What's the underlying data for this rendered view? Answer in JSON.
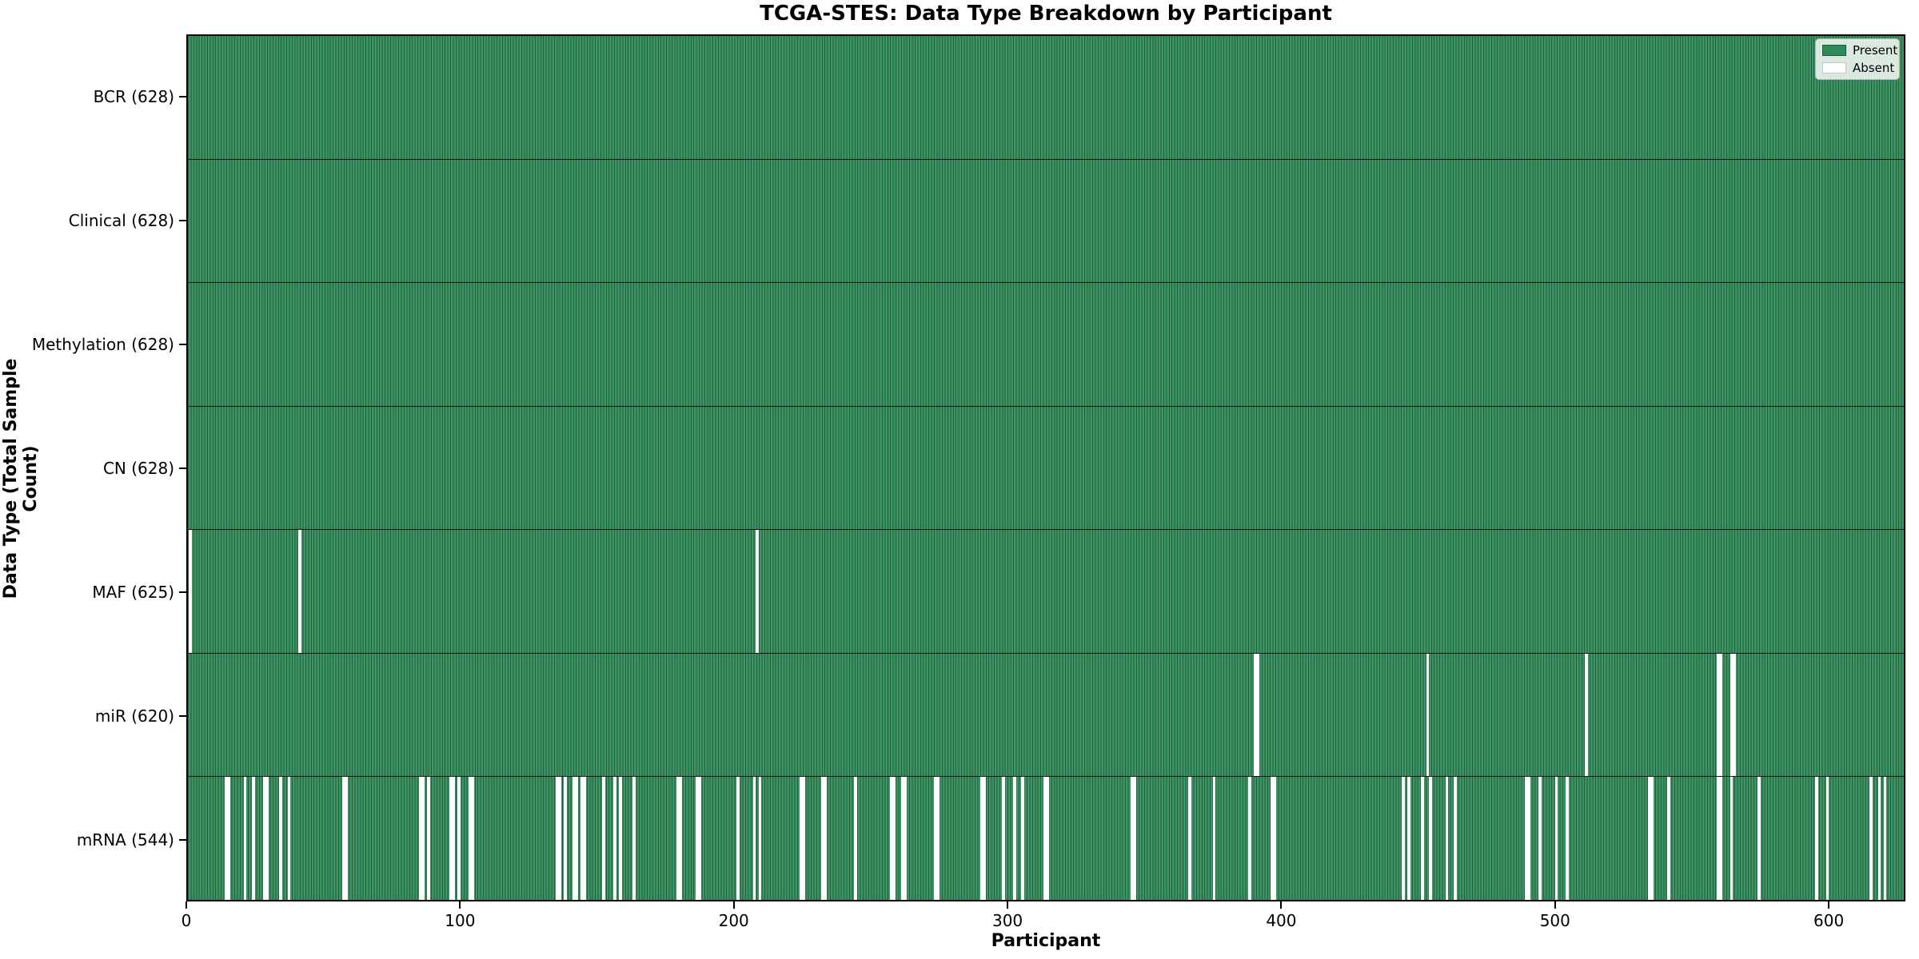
{
  "chart_data": {
    "type": "heatmap",
    "title": "TCGA-STES: Data Type Breakdown by Participant",
    "xlabel": "Participant",
    "ylabel": "Data Type (Total Sample Count)",
    "x_ticks": [
      0,
      100,
      200,
      300,
      400,
      500,
      600
    ],
    "x_range": [
      0,
      628
    ],
    "n_participants": 628,
    "grid": false,
    "legend": {
      "position": "upper right",
      "entries": [
        {
          "label": "Present",
          "color": "#2e8b57",
          "border": "#1d5c3a"
        },
        {
          "label": "Absent",
          "color": "#ffffff",
          "border": "#c8c8c8"
        }
      ]
    },
    "colors": {
      "present_fill": "#3c9663",
      "present_edge": "#265c3d",
      "absent_fill": "#ffffff",
      "row_divider": "#141414",
      "spine": "#000000"
    },
    "rows": [
      {
        "name": "bcr",
        "label": "BCR (628)",
        "present_count": 628,
        "absent_participants": []
      },
      {
        "name": "clinical",
        "label": "Clinical (628)",
        "present_count": 628,
        "absent_participants": []
      },
      {
        "name": "methylation",
        "label": "Methylation (628)",
        "present_count": 628,
        "absent_participants": []
      },
      {
        "name": "cn",
        "label": "CN (628)",
        "present_count": 628,
        "absent_participants": []
      },
      {
        "name": "maf",
        "label": "MAF (625)",
        "present_count": 625,
        "absent_participants": [
          1,
          41,
          208
        ]
      },
      {
        "name": "mir",
        "label": "miR (620)",
        "present_count": 620,
        "absent_participants": [
          390,
          391,
          453,
          511,
          559,
          560,
          564,
          565
        ]
      },
      {
        "name": "mrna",
        "label": "mRNA (544)",
        "present_count": 544,
        "absent_participants": [
          14,
          15,
          21,
          24,
          28,
          29,
          34,
          37,
          57,
          58,
          85,
          86,
          88,
          96,
          97,
          99,
          103,
          104,
          135,
          136,
          138,
          141,
          142,
          144,
          145,
          152,
          156,
          158,
          163,
          179,
          180,
          186,
          187,
          201,
          207,
          209,
          224,
          225,
          232,
          233,
          244,
          257,
          258,
          261,
          262,
          273,
          274,
          290,
          291,
          298,
          302,
          305,
          313,
          314,
          345,
          346,
          366,
          375,
          388,
          396,
          397,
          444,
          446,
          451,
          454,
          460,
          463,
          489,
          490,
          494,
          500,
          504,
          534,
          535,
          541,
          559,
          560,
          564,
          574,
          595,
          599,
          615,
          618,
          620
        ]
      }
    ]
  }
}
